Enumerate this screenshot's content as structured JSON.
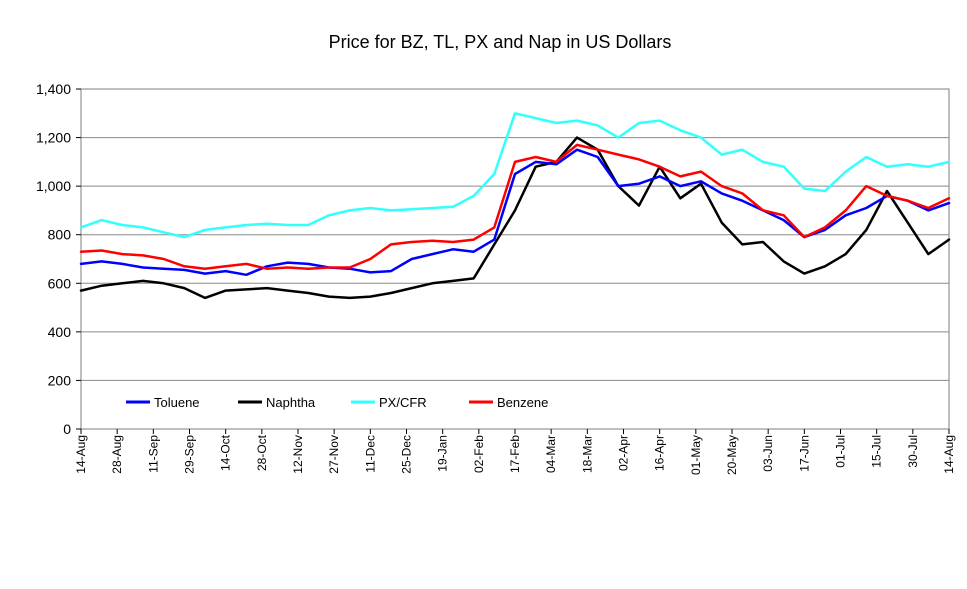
{
  "chart_data": {
    "type": "line",
    "title": "Price for BZ, TL, PX and Nap in US Dollars",
    "xlabel": "",
    "ylabel": "",
    "ylim": [
      0,
      1400
    ],
    "yticks": [
      0,
      200,
      400,
      600,
      800,
      1000,
      1200,
      1400
    ],
    "ytick_labels": [
      "0",
      "200",
      "400",
      "600",
      "800",
      "1,000",
      "1,200",
      "1,400"
    ],
    "xticks": [
      "14-Aug",
      "28-Aug",
      "11-Sep",
      "29-Sep",
      "14-Oct",
      "28-Oct",
      "12-Nov",
      "27-Nov",
      "11-Dec",
      "25-Dec",
      "19-Jan",
      "02-Feb",
      "17-Feb",
      "04-Mar",
      "18-Mar",
      "02-Apr",
      "16-Apr",
      "01-May",
      "20-May",
      "03-Jun",
      "17-Jun",
      "01-Jul",
      "15-Jul",
      "30-Jul",
      "14-Aug"
    ],
    "grid": true,
    "legend_position": "bottom-left inside plot",
    "series": [
      {
        "name": "Toluene",
        "color": "#0000ff",
        "values": [
          680,
          690,
          680,
          665,
          660,
          655,
          640,
          650,
          635,
          670,
          685,
          680,
          665,
          660,
          645,
          650,
          700,
          720,
          740,
          730,
          780,
          1050,
          1100,
          1090,
          1150,
          1120,
          1000,
          1010,
          1040,
          1000,
          1020,
          970,
          940,
          900,
          860,
          790,
          820,
          880,
          910,
          960,
          940,
          900,
          930
        ]
      },
      {
        "name": "Naphtha",
        "color": "#000000",
        "values": [
          570,
          590,
          600,
          610,
          600,
          580,
          540,
          570,
          575,
          580,
          570,
          560,
          545,
          540,
          545,
          560,
          580,
          600,
          610,
          620,
          760,
          900,
          1080,
          1100,
          1200,
          1150,
          1000,
          920,
          1080,
          950,
          1010,
          850,
          760,
          770,
          690,
          640,
          670,
          720,
          820,
          980,
          850,
          720,
          780
        ]
      },
      {
        "name": "PX/CFR",
        "color": "#33ffff",
        "values": [
          830,
          860,
          840,
          830,
          810,
          790,
          820,
          830,
          840,
          845,
          840,
          840,
          880,
          900,
          910,
          900,
          905,
          910,
          915,
          960,
          1050,
          1300,
          1280,
          1260,
          1270,
          1250,
          1200,
          1260,
          1270,
          1230,
          1200,
          1130,
          1150,
          1100,
          1080,
          990,
          980,
          1060,
          1120,
          1080,
          1090,
          1080,
          1100
        ]
      },
      {
        "name": "Benzene",
        "color": "#ff0000",
        "values": [
          730,
          735,
          720,
          715,
          700,
          670,
          660,
          670,
          680,
          660,
          665,
          660,
          665,
          665,
          700,
          760,
          770,
          775,
          770,
          780,
          830,
          1100,
          1120,
          1100,
          1170,
          1150,
          1130,
          1110,
          1080,
          1040,
          1060,
          1000,
          970,
          900,
          880,
          790,
          830,
          900,
          1000,
          960,
          940,
          910,
          950
        ]
      }
    ]
  }
}
